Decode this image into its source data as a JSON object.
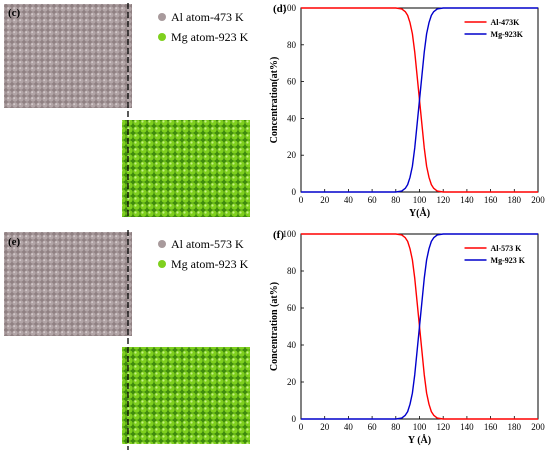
{
  "panels": [
    {
      "label": "(c)",
      "legend": [
        {
          "text": "Al atom-473 K",
          "color": "#a89a9c"
        },
        {
          "text": "Mg atom-923 K",
          "color": "#7fd01e"
        }
      ]
    },
    {
      "label": "(e)",
      "legend": [
        {
          "text": "Al atom-573 K",
          "color": "#a89a9c"
        },
        {
          "text": "Mg atom-923 K",
          "color": "#7fd01e"
        }
      ]
    }
  ],
  "colors": {
    "al_series": "#ff0000",
    "mg_series": "#0000cc",
    "al_atom": "#a89a9c",
    "mg_atom": "#7fd01e",
    "divider": "#000000"
  },
  "chart_data": [
    {
      "type": "line",
      "panel_label": "(d)",
      "xlabel": "Y(Å)",
      "ylabel": "Concentration(at%)",
      "xlim": [
        0,
        200
      ],
      "ylim": [
        0,
        100
      ],
      "xticks": [
        0,
        20,
        40,
        60,
        80,
        100,
        120,
        140,
        160,
        180,
        200
      ],
      "yticks": [
        0,
        20,
        40,
        60,
        80,
        100
      ],
      "legend_position": "top-right",
      "grid": false,
      "x": [
        0,
        80,
        85,
        88,
        90,
        92,
        94,
        96,
        98,
        100,
        102,
        104,
        106,
        108,
        110,
        112,
        115,
        120,
        200
      ],
      "series": [
        {
          "name": "Al-473K",
          "color": "#ff0000",
          "values": [
            100,
            100,
            99.5,
            98,
            96,
            92,
            86,
            76,
            63,
            50,
            37,
            24,
            14,
            8,
            4,
            2,
            0.5,
            0,
            0
          ]
        },
        {
          "name": "Mg-923K",
          "color": "#0000cc",
          "values": [
            0,
            0,
            0.5,
            2,
            4,
            8,
            14,
            24,
            37,
            50,
            63,
            76,
            86,
            92,
            96,
            98,
            99.5,
            100,
            100
          ]
        }
      ]
    },
    {
      "type": "line",
      "panel_label": "(f)",
      "xlabel": "Y (Å)",
      "ylabel": "Concentration (at%)",
      "xlim": [
        0,
        200
      ],
      "ylim": [
        0,
        100
      ],
      "xticks": [
        0,
        20,
        40,
        60,
        80,
        100,
        120,
        140,
        160,
        180,
        200
      ],
      "yticks": [
        0,
        20,
        40,
        60,
        80,
        100
      ],
      "legend_position": "top-right",
      "grid": false,
      "x": [
        0,
        80,
        85,
        88,
        90,
        92,
        94,
        96,
        98,
        100,
        102,
        104,
        106,
        108,
        110,
        112,
        115,
        120,
        200
      ],
      "series": [
        {
          "name": "Al-573 K",
          "color": "#ff0000",
          "values": [
            100,
            100,
            99.5,
            98,
            96,
            92,
            86,
            76,
            63,
            50,
            37,
            24,
            14,
            8,
            4,
            2,
            0.5,
            0,
            0
          ]
        },
        {
          "name": "Mg-923 K",
          "color": "#0000cc",
          "values": [
            0,
            0,
            0.5,
            2,
            4,
            8,
            14,
            24,
            37,
            50,
            63,
            76,
            86,
            92,
            96,
            98,
            99.5,
            100,
            100
          ]
        }
      ]
    }
  ]
}
